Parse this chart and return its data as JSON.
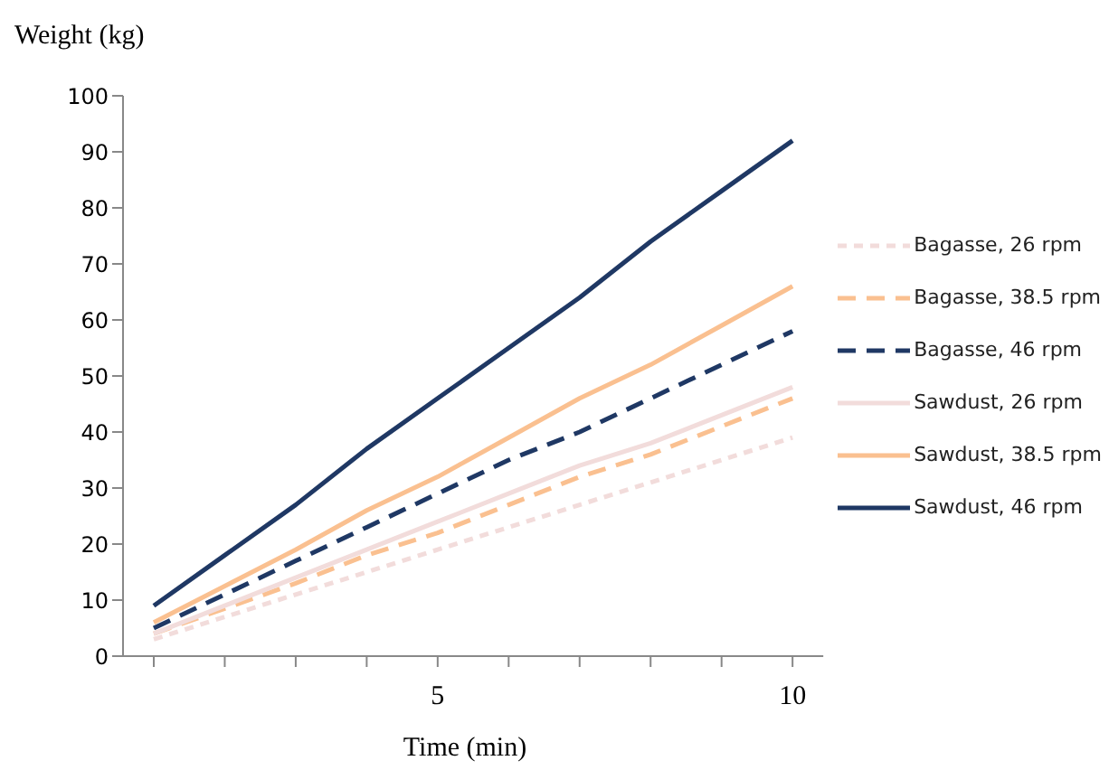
{
  "chart_data": {
    "type": "line",
    "xlabel": "Time (min)",
    "ylabel": "Weight (kg)",
    "categories": [
      null,
      null,
      null,
      null,
      "5",
      null,
      null,
      null,
      null,
      "10"
    ],
    "series": [
      {
        "name": "Bagasse, 26 rpm",
        "color": "#f2dcdb",
        "line_style": "dashed",
        "values": [
          3,
          7,
          11,
          15,
          19,
          23,
          27,
          31,
          35,
          39
        ]
      },
      {
        "name": "Bagasse, 38.5 rpm",
        "color": "#fac090",
        "line_style": "dashed",
        "values": [
          4,
          8.5,
          13,
          18,
          22,
          27,
          32,
          36,
          41,
          46
        ]
      },
      {
        "name": "Bagasse, 46 rpm",
        "color": "#1f3864",
        "line_style": "dashed",
        "values": [
          5,
          11,
          17,
          23,
          29,
          35,
          40,
          46,
          52,
          58
        ]
      },
      {
        "name": "Sawdust, 26 rpm",
        "color": "#f2dcdb",
        "line_style": "solid",
        "values": [
          4,
          9,
          14,
          19,
          24,
          29,
          34,
          38,
          43,
          48
        ]
      },
      {
        "name": "Sawdust, 38.5 rpm",
        "color": "#fac090",
        "line_style": "solid",
        "values": [
          6,
          12.5,
          19,
          26,
          32,
          39,
          46,
          52,
          59,
          66
        ]
      },
      {
        "name": "Sawdust, 46 rpm",
        "color": "#1f3864",
        "line_style": "solid",
        "values": [
          9,
          18,
          27,
          37,
          46,
          55,
          64,
          74,
          83,
          92
        ]
      }
    ],
    "ylim": [
      0,
      100
    ],
    "yticks": [
      0,
      10,
      20,
      30,
      40,
      50,
      60,
      70,
      80,
      90,
      100
    ],
    "grid": false,
    "legend": "right",
    "marker": "none"
  }
}
